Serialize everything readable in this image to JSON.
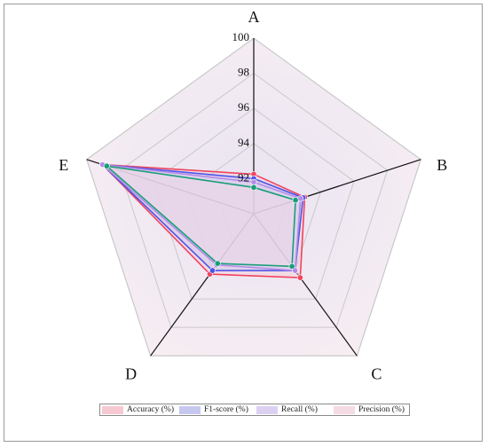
{
  "chart_data": {
    "type": "radar",
    "axes": [
      "A",
      "B",
      "C",
      "D",
      "E"
    ],
    "r_ticks": [
      92,
      94,
      96,
      98,
      100
    ],
    "r_min": 90,
    "r_max": 100,
    "series": [
      {
        "name": "Accuracy (%)",
        "values": [
          92.25,
          93.05,
          94.5,
          94.25,
          99.05
        ],
        "color": "#f0455f",
        "fill": "#f6c9d2"
      },
      {
        "name": "F1-score (%)",
        "values": [
          92.0,
          92.95,
          94.0,
          94.0,
          99.05
        ],
        "color": "#4d55e8",
        "fill": "#c7c8f0"
      },
      {
        "name": "Recall (%)",
        "values": [
          91.8,
          92.8,
          94.0,
          93.6,
          99.05
        ],
        "color": "#b48ae8",
        "fill": "#dcd0f2"
      },
      {
        "name": "Precision (%)",
        "values": [
          91.5,
          92.5,
          93.7,
          93.5,
          98.8
        ],
        "color": "#1a9e78",
        "fill": "#f4dbe4"
      }
    ]
  }
}
